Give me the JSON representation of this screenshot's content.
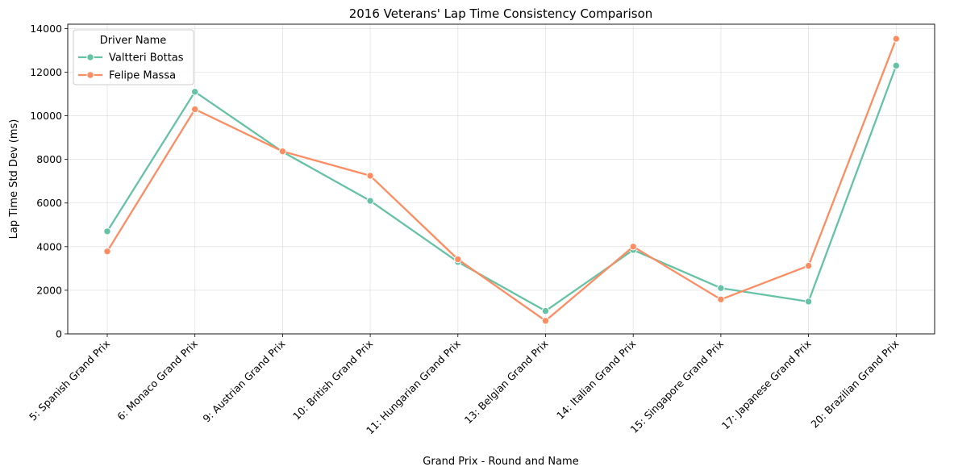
{
  "chart_data": {
    "type": "line",
    "title": "2016 Veterans' Lap Time Consistency Comparison",
    "xlabel": "Grand Prix - Round and Name",
    "ylabel": "Lap Time Std Dev (ms)",
    "categories": [
      "5: Spanish Grand Prix",
      "6: Monaco Grand Prix",
      "9: Austrian Grand Prix",
      "10: British Grand Prix",
      "11: Hungarian Grand Prix",
      "13: Belgian Grand Prix",
      "14: Italian Grand Prix",
      "15: Singapore Grand Prix",
      "17: Japanese Grand Prix",
      "20: Brazilian Grand Prix"
    ],
    "ylim": [
      0,
      14200
    ],
    "yticks": [
      0,
      2000,
      4000,
      6000,
      8000,
      10000,
      12000,
      14000
    ],
    "grid": true,
    "legend": {
      "title": "Driver Name",
      "placement": "top-left"
    },
    "series": [
      {
        "name": "Valtteri Bottas",
        "color": "#66c2a5",
        "values": [
          4700,
          11100,
          8350,
          6100,
          3300,
          1050,
          3850,
          2100,
          1480,
          12300
        ]
      },
      {
        "name": "Felipe Massa",
        "color": "#fc8d62",
        "values": [
          3780,
          10300,
          8370,
          7250,
          3420,
          600,
          4000,
          1580,
          3120,
          13530
        ]
      }
    ]
  }
}
